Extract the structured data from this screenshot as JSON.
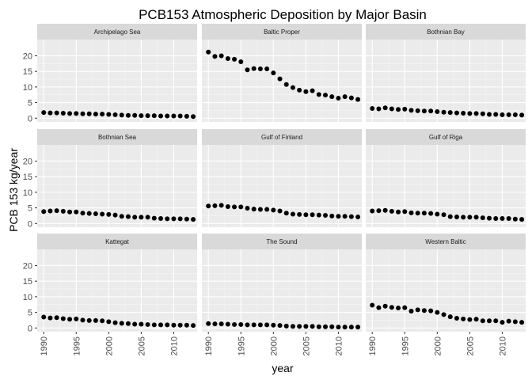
{
  "chart_data": {
    "type": "scatter",
    "title": "PCB153 Atmospheric Deposition by Major Basin",
    "xlabel": "year",
    "ylabel": "PCB 153 kg/year",
    "xlim": [
      1989,
      2013.6
    ],
    "ylim": [
      -1.2,
      25.2
    ],
    "x_ticks": [
      1990,
      1995,
      2000,
      2005,
      2010
    ],
    "y_ticks": [
      0,
      5,
      10,
      15,
      20
    ],
    "grid": true,
    "facet_layout": "3x3",
    "x": [
      1990,
      1991,
      1992,
      1993,
      1994,
      1995,
      1996,
      1997,
      1998,
      1999,
      2000,
      2001,
      2002,
      2003,
      2004,
      2005,
      2006,
      2007,
      2008,
      2009,
      2010,
      2011,
      2012,
      2013
    ],
    "series": [
      {
        "name": "Archipelago Sea",
        "values": [
          1.8,
          1.7,
          1.7,
          1.6,
          1.5,
          1.5,
          1.4,
          1.4,
          1.3,
          1.3,
          1.2,
          1.1,
          1.0,
          0.9,
          0.9,
          0.8,
          0.8,
          0.8,
          0.7,
          0.7,
          0.7,
          0.7,
          0.6,
          0.5
        ]
      },
      {
        "name": "Baltic Proper",
        "values": [
          21.2,
          19.8,
          20.0,
          19.1,
          18.9,
          18.1,
          15.5,
          15.9,
          15.8,
          15.8,
          14.5,
          12.6,
          10.8,
          9.8,
          9.0,
          8.5,
          8.8,
          7.6,
          7.4,
          6.9,
          6.4,
          6.9,
          6.5,
          6.0
        ]
      },
      {
        "name": "Bothnian Bay",
        "values": [
          3.1,
          3.0,
          3.3,
          3.0,
          2.8,
          2.9,
          2.5,
          2.4,
          2.3,
          2.3,
          2.1,
          1.9,
          1.8,
          1.7,
          1.6,
          1.5,
          1.5,
          1.4,
          1.2,
          1.2,
          1.1,
          1.1,
          1.1,
          1.0
        ]
      },
      {
        "name": "Bothnian Sea",
        "values": [
          3.8,
          4.0,
          4.1,
          3.9,
          3.7,
          3.7,
          3.3,
          3.2,
          3.1,
          3.0,
          2.9,
          2.7,
          2.3,
          2.2,
          2.0,
          2.0,
          2.0,
          1.7,
          1.6,
          1.5,
          1.5,
          1.5,
          1.4,
          1.3
        ]
      },
      {
        "name": "Gulf of Finland",
        "values": [
          5.6,
          5.7,
          5.8,
          5.4,
          5.3,
          5.3,
          4.9,
          4.6,
          4.5,
          4.5,
          4.3,
          4.0,
          3.3,
          3.0,
          2.9,
          2.8,
          2.8,
          2.7,
          2.6,
          2.4,
          2.3,
          2.3,
          2.2,
          2.1
        ]
      },
      {
        "name": "Gulf of Riga",
        "values": [
          4.0,
          4.1,
          4.2,
          3.9,
          3.7,
          3.8,
          3.4,
          3.3,
          3.3,
          3.2,
          3.0,
          2.8,
          2.2,
          2.1,
          2.0,
          2.0,
          2.0,
          1.8,
          1.7,
          1.6,
          1.6,
          1.6,
          1.4,
          1.3
        ]
      },
      {
        "name": "Kattegat",
        "values": [
          3.5,
          3.2,
          3.3,
          3.0,
          2.8,
          2.9,
          2.5,
          2.4,
          2.4,
          2.3,
          2.0,
          1.7,
          1.5,
          1.4,
          1.2,
          1.2,
          1.1,
          1.0,
          1.0,
          1.0,
          0.9,
          0.9,
          0.9,
          0.8
        ]
      },
      {
        "name": "The Sound",
        "values": [
          1.4,
          1.3,
          1.3,
          1.2,
          1.1,
          1.1,
          1.0,
          1.0,
          1.0,
          1.0,
          0.9,
          0.8,
          0.6,
          0.5,
          0.5,
          0.5,
          0.5,
          0.4,
          0.4,
          0.4,
          0.3,
          0.3,
          0.3,
          0.3
        ]
      },
      {
        "name": "Western Baltic",
        "values": [
          7.3,
          6.5,
          7.0,
          6.6,
          6.4,
          6.5,
          5.4,
          5.8,
          5.6,
          5.5,
          5.0,
          4.3,
          3.6,
          3.1,
          2.9,
          2.7,
          2.8,
          2.3,
          2.3,
          2.3,
          1.8,
          2.2,
          2.0,
          1.8
        ]
      }
    ]
  },
  "colors": {
    "panel_background": "#ebebeb",
    "grid_major": "#ffffff",
    "strip_background": "#d9d9d9",
    "point": "#000000",
    "tick": "#333333"
  }
}
